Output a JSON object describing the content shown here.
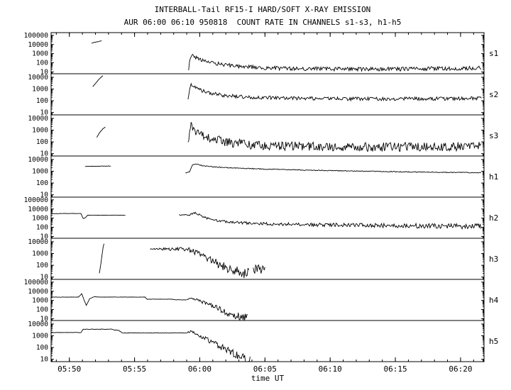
{
  "title": "INTERBALL-Tail RF15-I HARD/SOFT X-RAY EMISSION",
  "subtitle": "AUR 06:00 06:10 950818  COUNT RATE IN CHANNELS s1-s3, h1-h5",
  "colors": {
    "fg": "#000000",
    "bg": "#ffffff"
  },
  "chart_data": {
    "type": "line",
    "xlabel": "time UT",
    "x_range": [
      48.6,
      81.8
    ],
    "x_ticks": [
      {
        "t": 50,
        "label": "05:50"
      },
      {
        "t": 55,
        "label": "05:55"
      },
      {
        "t": 60,
        "label": "06:00"
      },
      {
        "t": 65,
        "label": "06:05"
      },
      {
        "t": 70,
        "label": "06:10"
      },
      {
        "t": 75,
        "label": "06:15"
      },
      {
        "t": 80,
        "label": "06:20"
      }
    ],
    "time_unit": "minutes after 05:00 UT",
    "y_scale": "log",
    "panels": [
      {
        "label": "s1",
        "log_range": [
          0.8,
          5.3
        ],
        "y_tick_labels": [
          100000,
          10000,
          1000,
          100,
          10
        ],
        "segments": [
          {
            "points": [
              [
                51.7,
                14000
              ],
              [
                52.5,
                26000
              ]
            ],
            "noise_log": 0.03
          },
          {
            "points": [
              [
                59.15,
                25
              ],
              [
                59.3,
                700
              ],
              [
                59.5,
                500
              ],
              [
                60.0,
                250
              ],
              [
                60.8,
                120
              ],
              [
                61.8,
                60
              ],
              [
                63.0,
                40
              ],
              [
                65.0,
                28
              ],
              [
                68.0,
                22
              ],
              [
                72.0,
                20
              ],
              [
                76.0,
                22
              ],
              [
                81.6,
                26
              ]
            ],
            "noise_log": 0.22
          }
        ]
      },
      {
        "label": "s2",
        "log_range": [
          0.8,
          4.3
        ],
        "y_tick_labels": [
          10000,
          1000,
          100,
          10
        ],
        "segments": [
          {
            "points": [
              [
                51.8,
                1600
              ],
              [
                52.0,
                3000
              ],
              [
                52.3,
                7000
              ],
              [
                52.6,
                15000
              ]
            ],
            "noise_log": 0.02
          },
          {
            "points": [
              [
                59.1,
                120
              ],
              [
                59.3,
                2800
              ],
              [
                59.6,
                1600
              ],
              [
                60.2,
                700
              ],
              [
                61.0,
                400
              ],
              [
                62.0,
                280
              ],
              [
                63.5,
                210
              ],
              [
                66.0,
                170
              ],
              [
                70.0,
                150
              ],
              [
                74.0,
                145
              ],
              [
                78.0,
                150
              ],
              [
                81.6,
                160
              ]
            ],
            "noise_log": 0.15
          }
        ]
      },
      {
        "label": "s3",
        "log_range": [
          0.8,
          4.3
        ],
        "y_tick_labels": [
          10000,
          1000,
          100,
          10
        ],
        "segments": [
          {
            "points": [
              [
                52.1,
                250
              ],
              [
                52.35,
                700
              ],
              [
                52.6,
                1400
              ],
              [
                52.8,
                1900
              ]
            ],
            "noise_log": 0.03
          },
          {
            "points": [
              [
                59.1,
                60
              ],
              [
                59.3,
                2400
              ],
              [
                59.7,
                900
              ],
              [
                60.3,
                350
              ],
              [
                61.2,
                150
              ],
              [
                62.5,
                80
              ],
              [
                64.0,
                55
              ],
              [
                66.0,
                45
              ],
              [
                70.0,
                38
              ],
              [
                74.0,
                36
              ],
              [
                78.0,
                38
              ],
              [
                81.6,
                42
              ]
            ],
            "noise_log": 0.38
          }
        ]
      },
      {
        "label": "h1",
        "log_range": [
          0.8,
          4.3
        ],
        "y_tick_labels": [
          10000,
          1000,
          100,
          10
        ],
        "segments": [
          {
            "points": [
              [
                51.2,
                2600
              ],
              [
                53.2,
                2800
              ]
            ],
            "noise_log": 0.015
          },
          {
            "points": [
              [
                58.9,
                750
              ],
              [
                59.2,
                900
              ],
              [
                59.45,
                3500
              ],
              [
                59.7,
                4200
              ],
              [
                60.2,
                3000
              ],
              [
                61.0,
                2400
              ],
              [
                62.5,
                1900
              ],
              [
                64.5,
                1600
              ],
              [
                67.0,
                1350
              ],
              [
                70.0,
                1150
              ],
              [
                73.0,
                1000
              ],
              [
                76.0,
                880
              ],
              [
                79.0,
                800
              ],
              [
                81.6,
                760
              ]
            ],
            "noise_log": 0.035
          }
        ]
      },
      {
        "label": "h2",
        "log_range": [
          0.8,
          5.3
        ],
        "y_tick_labels": [
          100000,
          10000,
          1000,
          100,
          10
        ],
        "segments": [
          {
            "points": [
              [
                48.6,
                3200
              ],
              [
                50.9,
                3200
              ],
              [
                51.05,
                900
              ],
              [
                51.2,
                1000
              ],
              [
                51.4,
                2100
              ],
              [
                54.3,
                2100
              ]
            ],
            "noise_log": 0.02
          },
          {
            "points": [
              [
                58.4,
                2100
              ],
              [
                59.25,
                2000
              ],
              [
                59.5,
                4200
              ],
              [
                59.9,
                2500
              ],
              [
                60.5,
                1000
              ],
              [
                61.3,
                550
              ],
              [
                62.5,
                350
              ],
              [
                64.0,
                270
              ],
              [
                66.5,
                220
              ],
              [
                69.0,
                190
              ],
              [
                72.0,
                170
              ],
              [
                75.0,
                150
              ],
              [
                78.0,
                140
              ],
              [
                81.6,
                125
              ]
            ],
            "noise_log": 0.1,
            "noise_log_end": 0.3
          }
        ]
      },
      {
        "label": "h3",
        "log_range": [
          0.8,
          4.3
        ],
        "y_tick_labels": [
          10000,
          1000,
          100,
          10
        ],
        "segments": [
          {
            "points": [
              [
                52.3,
                20
              ],
              [
                52.4,
                100
              ],
              [
                52.5,
                700
              ],
              [
                52.6,
                4000
              ],
              [
                52.7,
                9500
              ]
            ],
            "noise_log": 0.02
          },
          {
            "points": [
              [
                56.2,
                2400
              ],
              [
                58.9,
                2400
              ],
              [
                59.1,
                2000
              ],
              [
                59.4,
                1900
              ],
              [
                59.8,
                1100
              ],
              [
                60.4,
                500
              ],
              [
                61.0,
                220
              ],
              [
                61.7,
                90
              ],
              [
                62.4,
                40
              ],
              [
                63.1,
                25
              ],
              [
                63.8,
                22
              ]
            ],
            "noise_log": 0.04,
            "noise_log_end": 0.5
          },
          {
            "points": [
              [
                64.1,
                45
              ],
              [
                64.5,
                38
              ],
              [
                65.0,
                32
              ]
            ],
            "noise_log": 0.45
          }
        ]
      },
      {
        "label": "h4",
        "log_range": [
          0.8,
          5.3
        ],
        "y_tick_labels": [
          100000,
          10000,
          1000,
          100,
          10
        ],
        "segments": [
          {
            "points": [
              [
                48.6,
                2300
              ],
              [
                50.7,
                2300
              ],
              [
                50.95,
                5500
              ],
              [
                51.15,
                900
              ],
              [
                51.3,
                280
              ],
              [
                51.55,
                1500
              ],
              [
                51.9,
                2600
              ],
              [
                52.3,
                2300
              ],
              [
                55.8,
                2300
              ],
              [
                55.95,
                1350
              ],
              [
                57.9,
                1350
              ],
              [
                58.1,
                1150
              ],
              [
                59.0,
                1150
              ]
            ],
            "noise_log": 0.02
          },
          {
            "points": [
              [
                59.0,
                1150
              ],
              [
                59.3,
                1900
              ],
              [
                59.7,
                1300
              ],
              [
                60.2,
                700
              ],
              [
                60.8,
                320
              ],
              [
                61.4,
                130
              ],
              [
                62.0,
                55
              ],
              [
                62.6,
                25
              ],
              [
                63.2,
                14
              ],
              [
                63.7,
                11
              ]
            ],
            "noise_log": 0.06,
            "noise_log_end": 0.5
          }
        ]
      },
      {
        "label": "h5",
        "log_range": [
          0.8,
          4.3
        ],
        "y_tick_labels": [
          10000,
          1000,
          100,
          10
        ],
        "segments": [
          {
            "points": [
              [
                48.6,
                1900
              ],
              [
                50.9,
                1900
              ],
              [
                51.05,
                3600
              ],
              [
                53.3,
                3600
              ],
              [
                53.5,
                3000
              ],
              [
                53.8,
                2900
              ],
              [
                54.05,
                1750
              ],
              [
                59.0,
                1750
              ]
            ],
            "noise_log": 0.02
          },
          {
            "points": [
              [
                59.0,
                1750
              ],
              [
                59.3,
                2500
              ],
              [
                59.8,
                1300
              ],
              [
                60.4,
                600
              ],
              [
                61.1,
                230
              ],
              [
                61.8,
                90
              ],
              [
                62.5,
                35
              ],
              [
                63.2,
                15
              ],
              [
                63.9,
                10
              ]
            ],
            "noise_log": 0.06,
            "noise_log_end": 0.45
          }
        ]
      }
    ]
  }
}
